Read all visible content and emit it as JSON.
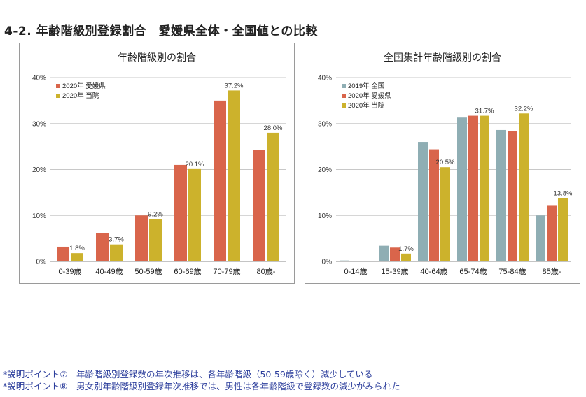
{
  "page_title": "4-2. 年齢階級別登録割合　愛媛県全体・全国値との比較",
  "footnotes": [
    "*説明ポイント⑦　年齢階級別登録数の年次推移は、各年齢階級（50-59歳除く）減少している",
    "*説明ポイント⑧　男女別年齢階級別登録年次推移では、男性は各年齢階級で登録数の減少がみられた"
  ],
  "chart_data": [
    {
      "type": "bar",
      "title": "年齢階級別の割合",
      "xlabel": "",
      "ylabel": "",
      "ylim": [
        0,
        40
      ],
      "yticks": [
        "0%",
        "10%",
        "20%",
        "30%",
        "40%"
      ],
      "grid": true,
      "legend": "top-left",
      "categories": [
        "0-39歳",
        "40-49歳",
        "50-59歳",
        "60-69歳",
        "70-79歳",
        "80歳-"
      ],
      "series": [
        {
          "name": "2020年 愛媛県",
          "color": "#d9654b",
          "values": [
            3.2,
            6.2,
            10.0,
            21.0,
            35.0,
            24.2
          ]
        },
        {
          "name": "2020年 当院",
          "color": "#ccb22c",
          "values": [
            1.8,
            3.7,
            9.2,
            20.1,
            37.2,
            28.0
          ],
          "data_labels": [
            "1.8%",
            "3.7%",
            "9.2%",
            "20.1%",
            "37.2%",
            "28.0%"
          ]
        }
      ]
    },
    {
      "type": "bar",
      "title": "全国集計年齢階級別の割合",
      "xlabel": "",
      "ylabel": "",
      "ylim": [
        0,
        40
      ],
      "yticks": [
        "0%",
        "10%",
        "20%",
        "30%",
        "40%"
      ],
      "grid": true,
      "legend": "top-left",
      "categories": [
        "0-14歳",
        "15-39歳",
        "40-64歳",
        "65-74歳",
        "75-84歳",
        "85歳-"
      ],
      "series": [
        {
          "name": "2019年 全国",
          "color": "#8faeb4",
          "values": [
            0.2,
            3.4,
            26.0,
            31.3,
            28.6,
            10.0
          ]
        },
        {
          "name": "2020年 愛媛県",
          "color": "#d9654b",
          "values": [
            0.1,
            3.0,
            24.4,
            31.7,
            28.3,
            12.1
          ]
        },
        {
          "name": "2020年 当院",
          "color": "#ccb22c",
          "values": [
            0.0,
            1.7,
            20.5,
            31.7,
            32.2,
            13.8
          ],
          "data_labels": [
            "",
            "1.7%",
            "20.5%",
            "31.7%",
            "32.2%",
            "13.8%"
          ]
        }
      ]
    }
  ]
}
